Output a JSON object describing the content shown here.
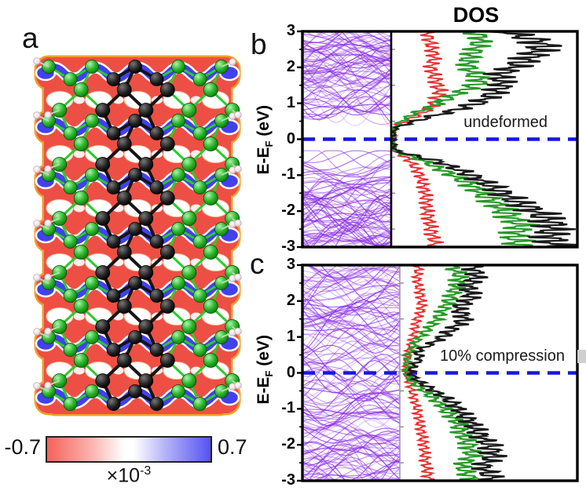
{
  "figure": {
    "panel_a_label": "a",
    "panel_b_label": "b",
    "panel_c_label": "c",
    "dos_title": "DOS"
  },
  "colorbar": {
    "min_label": "-0.7",
    "max_label": "0.7",
    "multiplier_base": "×10",
    "multiplier_exp": "-3",
    "left_color": "#f4635a",
    "mid_color": "#ffffff",
    "right_color": "#5553f0"
  },
  "axis": {
    "label_pre": "E-E",
    "label_sub": "F",
    "label_post": " (eV)"
  },
  "structure": {
    "description": "ball-and-stick nanoribbon over charge-density-difference map",
    "atom_color_large": "#2db82d",
    "atom_color_backbone": "#111111",
    "atom_color_small": "#ffffff",
    "density_negative_color": "#ee4f44",
    "density_positive_color": "#4340ee"
  },
  "chart_data": [
    {
      "id": "b",
      "type": "line",
      "title": "DOS",
      "ylabel": "E-EF (eV)",
      "ylim": [
        -3,
        3
      ],
      "yticks": [
        3,
        2,
        1,
        0,
        -1,
        -2,
        -3
      ],
      "annotation": "undeformed",
      "fermi_energy": 0,
      "fermi_line_color": "#1717e0",
      "divider_color": "#000000",
      "band_structure": {
        "color": "#8a2be2",
        "band_gap_ev": 0.6,
        "sparse_mid_lines": 0,
        "regions": [
          {
            "emin": 0.3,
            "emax": 3.0,
            "lines": 85
          },
          {
            "emin": -3.0,
            "emax": -0.3,
            "lines": 85
          }
        ]
      },
      "dos_series": [
        {
          "name": "red",
          "color": "#e62e2e",
          "width": 1.7,
          "points": [
            [
              -3,
              0.25
            ],
            [
              -2.5,
              0.22
            ],
            [
              -2,
              0.2
            ],
            [
              -1.5,
              0.19
            ],
            [
              -1,
              0.16
            ],
            [
              -0.7,
              0.12
            ],
            [
              -0.5,
              0.08
            ],
            [
              -0.35,
              0.03
            ],
            [
              -0.3,
              0.01
            ],
            [
              -0.1,
              0.005
            ],
            [
              0.1,
              0.005
            ],
            [
              0.3,
              0.01
            ],
            [
              0.4,
              0.04
            ],
            [
              0.6,
              0.12
            ],
            [
              0.8,
              0.2
            ],
            [
              1,
              0.24
            ],
            [
              1.3,
              0.27
            ],
            [
              1.6,
              0.25
            ],
            [
              2,
              0.22
            ],
            [
              2.3,
              0.24
            ],
            [
              2.6,
              0.22
            ],
            [
              3,
              0.2
            ]
          ]
        },
        {
          "name": "green",
          "color": "#279927",
          "width": 2.0,
          "points": [
            [
              -3,
              0.72
            ],
            [
              -2.7,
              0.68
            ],
            [
              -2.4,
              0.72
            ],
            [
              -2.1,
              0.65
            ],
            [
              -1.8,
              0.58
            ],
            [
              -1.5,
              0.5
            ],
            [
              -1.2,
              0.42
            ],
            [
              -0.9,
              0.3
            ],
            [
              -0.6,
              0.18
            ],
            [
              -0.4,
              0.06
            ],
            [
              -0.3,
              0.015
            ],
            [
              0,
              0.005
            ],
            [
              0.3,
              0.01
            ],
            [
              0.5,
              0.06
            ],
            [
              0.7,
              0.12
            ],
            [
              0.9,
              0.22
            ],
            [
              1.1,
              0.3
            ],
            [
              1.4,
              0.42
            ],
            [
              1.6,
              0.5
            ],
            [
              1.9,
              0.44
            ],
            [
              2.2,
              0.42
            ],
            [
              2.5,
              0.47
            ],
            [
              2.8,
              0.5
            ],
            [
              3,
              0.46
            ]
          ]
        },
        {
          "name": "black-total",
          "color": "#1a1a1a",
          "width": 2.2,
          "points": [
            [
              -3,
              0.92
            ],
            [
              -2.7,
              0.88
            ],
            [
              -2.4,
              0.9
            ],
            [
              -2.1,
              0.84
            ],
            [
              -1.8,
              0.72
            ],
            [
              -1.5,
              0.62
            ],
            [
              -1.2,
              0.52
            ],
            [
              -0.9,
              0.4
            ],
            [
              -0.6,
              0.25
            ],
            [
              -0.4,
              0.08
            ],
            [
              -0.3,
              0.02
            ],
            [
              0,
              0.005
            ],
            [
              0.3,
              0.02
            ],
            [
              0.45,
              0.1
            ],
            [
              0.6,
              0.2
            ],
            [
              0.8,
              0.35
            ],
            [
              1,
              0.48
            ],
            [
              1.2,
              0.55
            ],
            [
              1.5,
              0.62
            ],
            [
              1.8,
              0.6
            ],
            [
              2,
              0.68
            ],
            [
              2.3,
              0.78
            ],
            [
              2.6,
              0.85
            ],
            [
              2.8,
              0.78
            ],
            [
              3,
              0.62
            ]
          ]
        }
      ]
    },
    {
      "id": "c",
      "type": "line",
      "title": "DOS",
      "ylabel": "E-EF (eV)",
      "ylim": [
        -3,
        3
      ],
      "yticks": [
        3,
        2,
        1,
        0,
        -1,
        -2,
        -3
      ],
      "annotation": "10% compression",
      "fermi_energy": 0,
      "fermi_line_color": "#1717e0",
      "divider_color": "#999999",
      "band_structure": {
        "color": "#8a2be2",
        "band_gap_ev": 0,
        "sparse_mid_lines": 10,
        "regions": [
          {
            "emin": -3.0,
            "emax": 3.0,
            "lines": 150
          }
        ]
      },
      "dos_series": [
        {
          "name": "red",
          "color": "#e62e2e",
          "width": 1.7,
          "points": [
            [
              -3,
              0.17
            ],
            [
              -2.5,
              0.15
            ],
            [
              -2,
              0.14
            ],
            [
              -1.5,
              0.12
            ],
            [
              -1,
              0.1
            ],
            [
              -0.5,
              0.07
            ],
            [
              0,
              0.04
            ],
            [
              0.3,
              0.04
            ],
            [
              0.6,
              0.05
            ],
            [
              1,
              0.08
            ],
            [
              1.5,
              0.1
            ],
            [
              1.8,
              0.13
            ],
            [
              2.2,
              0.12
            ],
            [
              2.6,
              0.1
            ],
            [
              3,
              0.11
            ]
          ]
        },
        {
          "name": "green",
          "color": "#279927",
          "width": 2.0,
          "points": [
            [
              -3,
              0.42
            ],
            [
              -2.6,
              0.36
            ],
            [
              -2.3,
              0.42
            ],
            [
              -2,
              0.4
            ],
            [
              -1.7,
              0.36
            ],
            [
              -1.4,
              0.34
            ],
            [
              -1.1,
              0.28
            ],
            [
              -0.8,
              0.22
            ],
            [
              -0.5,
              0.14
            ],
            [
              -0.2,
              0.06
            ],
            [
              0,
              0.04
            ],
            [
              0.3,
              0.04
            ],
            [
              0.6,
              0.06
            ],
            [
              0.9,
              0.1
            ],
            [
              1.2,
              0.16
            ],
            [
              1.5,
              0.22
            ],
            [
              1.8,
              0.26
            ],
            [
              2.1,
              0.3
            ],
            [
              2.4,
              0.33
            ],
            [
              2.7,
              0.35
            ],
            [
              3,
              0.3
            ]
          ]
        },
        {
          "name": "black-total",
          "color": "#1a1a1a",
          "width": 2.2,
          "points": [
            [
              -3,
              0.55
            ],
            [
              -2.6,
              0.48
            ],
            [
              -2.3,
              0.55
            ],
            [
              -2,
              0.52
            ],
            [
              -1.7,
              0.46
            ],
            [
              -1.4,
              0.42
            ],
            [
              -1.1,
              0.36
            ],
            [
              -0.8,
              0.3
            ],
            [
              -0.5,
              0.2
            ],
            [
              -0.2,
              0.1
            ],
            [
              0,
              0.06
            ],
            [
              0.2,
              0.08
            ],
            [
              0.4,
              0.12
            ],
            [
              0.6,
              0.1
            ],
            [
              0.8,
              0.18
            ],
            [
              1,
              0.25
            ],
            [
              1.2,
              0.3
            ],
            [
              1.5,
              0.38
            ],
            [
              1.8,
              0.34
            ],
            [
              2.1,
              0.42
            ],
            [
              2.4,
              0.4
            ],
            [
              2.7,
              0.45
            ],
            [
              3,
              0.42
            ]
          ]
        }
      ]
    }
  ]
}
